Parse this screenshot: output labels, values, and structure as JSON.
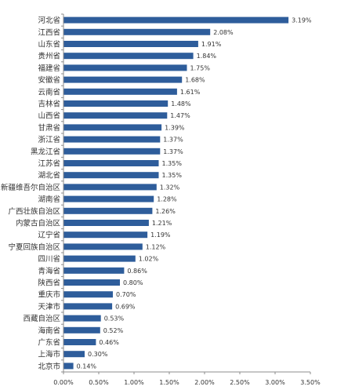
{
  "chart_data": {
    "type": "bar",
    "orientation": "horizontal",
    "categories": [
      "河北省",
      "江西省",
      "山东省",
      "贵州省",
      "福建省",
      "安徽省",
      "云南省",
      "吉林省",
      "山西省",
      "甘肃省",
      "浙江省",
      "黑龙江省",
      "江苏省",
      "湖北省",
      "新疆维吾尔自治区",
      "湖南省",
      "广西壮族自治区",
      "内蒙古自治区",
      "辽宁省",
      "宁夏回族自治区",
      "四川省",
      "青海省",
      "陕西省",
      "重庆市",
      "天津市",
      "西藏自治区",
      "海南省",
      "广东省",
      "上海市",
      "北京市"
    ],
    "values": [
      3.19,
      2.08,
      1.91,
      1.84,
      1.75,
      1.68,
      1.61,
      1.48,
      1.47,
      1.39,
      1.37,
      1.37,
      1.35,
      1.35,
      1.32,
      1.28,
      1.26,
      1.21,
      1.19,
      1.12,
      1.02,
      0.86,
      0.8,
      0.7,
      0.69,
      0.53,
      0.52,
      0.46,
      0.3,
      0.14
    ],
    "value_labels": [
      "3.19%",
      "2.08%",
      "1.91%",
      "1.84%",
      "1.75%",
      "1.68%",
      "1.61%",
      "1.48%",
      "1.47%",
      "1.39%",
      "1.37%",
      "1.37%",
      "1.35%",
      "1.35%",
      "1.32%",
      "1.28%",
      "1.26%",
      "1.21%",
      "1.19%",
      "1.12%",
      "1.02%",
      "0.86%",
      "0.80%",
      "0.70%",
      "0.69%",
      "0.53%",
      "0.52%",
      "0.46%",
      "0.30%",
      "0.14%"
    ],
    "xlim": [
      0,
      3.5
    ],
    "x_ticks": [
      0,
      0.5,
      1.0,
      1.5,
      2.0,
      2.5,
      3.0,
      3.5
    ],
    "x_tick_labels": [
      "0.00%",
      "0.50%",
      "1.00%",
      "1.50%",
      "2.00%",
      "2.50%",
      "3.00%",
      "3.50%"
    ],
    "bar_color": "#2E5D9B",
    "grid": false,
    "legend": false
  }
}
